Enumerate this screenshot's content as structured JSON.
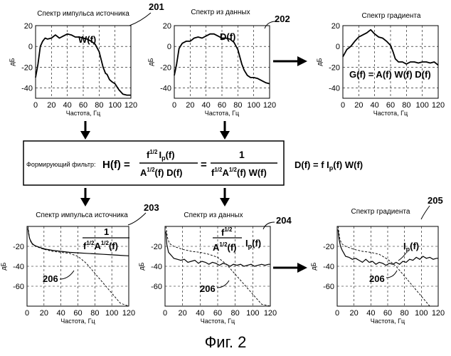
{
  "chart_data": [
    {
      "id": "top-left",
      "type": "line",
      "title": "Спектр импульса источника",
      "xlabel": "Частота, Гц",
      "ylabel": "дБ",
      "xlim": [
        0,
        120
      ],
      "ylim": [
        -50,
        20
      ],
      "xticks": [
        "0",
        "20",
        "40",
        "60",
        "80",
        "100",
        "120"
      ],
      "yticks": [
        "20",
        "0",
        "-20",
        "-40"
      ],
      "grid": true,
      "reference": "201",
      "series": [
        {
          "name": "W(f)",
          "x": [
            0,
            3,
            6,
            9,
            12,
            15,
            20,
            25,
            30,
            35,
            40,
            45,
            50,
            55,
            60,
            65,
            70,
            75,
            80,
            85,
            88,
            90,
            93,
            96,
            100,
            105,
            110,
            115,
            120
          ],
          "y": [
            -30,
            -17,
            0,
            5,
            8,
            7,
            8,
            11,
            8,
            10,
            12,
            11,
            9,
            9,
            8,
            7,
            5,
            2,
            -5,
            -20,
            -26,
            -27,
            -32,
            -34,
            -36,
            -42,
            -46,
            -47,
            -47
          ]
        }
      ]
    },
    {
      "id": "top-middle",
      "type": "line",
      "title": "Спектр из данных",
      "xlabel": "Частота, Гц",
      "ylabel": "дБ",
      "xlim": [
        0,
        120
      ],
      "ylim": [
        -50,
        20
      ],
      "xticks": [
        "0",
        "20",
        "40",
        "60",
        "80",
        "100",
        "120"
      ],
      "yticks": [
        "20",
        "0",
        "-20",
        "-40"
      ],
      "grid": true,
      "reference": "202",
      "series": [
        {
          "name": "D(f)",
          "x": [
            0,
            3,
            6,
            10,
            15,
            20,
            25,
            30,
            35,
            40,
            45,
            50,
            55,
            60,
            65,
            70,
            75,
            80,
            85,
            88,
            92,
            96,
            100,
            105,
            110,
            115,
            120
          ],
          "y": [
            -28,
            -17,
            -2,
            3,
            5,
            5,
            8,
            9,
            8,
            10,
            12,
            12,
            10,
            8,
            8,
            7,
            4,
            -3,
            -17,
            -23,
            -28,
            -30,
            -30,
            -31,
            -33,
            -35,
            -36
          ]
        }
      ]
    },
    {
      "id": "top-right",
      "type": "line",
      "title": "Спектр градиента",
      "xlabel": "Частота, Гц",
      "ylabel": "дБ",
      "xlim": [
        0,
        120
      ],
      "ylim": [
        -50,
        20
      ],
      "xticks": [
        "0",
        "20",
        "40",
        "60",
        "80",
        "100",
        "120"
      ],
      "yticks": [
        "20",
        "0",
        "-20",
        "-40"
      ],
      "grid": true,
      "equation": "G(f) = A(f) W(f) D(f)",
      "series": [
        {
          "name": "G(f)",
          "x": [
            0,
            5,
            10,
            15,
            20,
            25,
            30,
            35,
            40,
            45,
            50,
            55,
            60,
            63,
            66,
            70,
            75,
            80,
            85,
            90,
            95,
            100,
            105,
            110,
            115,
            120
          ],
          "y": [
            -10,
            -3,
            0,
            5,
            9,
            11,
            13,
            16,
            12,
            9,
            8,
            5,
            1,
            -5,
            -12,
            -15,
            -15,
            -17,
            -15,
            -15,
            -16,
            -15,
            -15,
            -16,
            -15,
            -18
          ]
        }
      ]
    },
    {
      "id": "bottom-left",
      "type": "line",
      "title": "Спектр импульса источника",
      "xlabel": "Частота, Гц",
      "ylabel": "дБ",
      "xlim": [
        0,
        120
      ],
      "ylim": [
        -80,
        0
      ],
      "xticks": [
        "0",
        "20",
        "40",
        "60",
        "80",
        "100",
        "120"
      ],
      "yticks": [
        "-20",
        "-40",
        "-60"
      ],
      "grid": true,
      "reference": "203",
      "dashed_reference": "206",
      "series": [
        {
          "name": "1/(f^1/2 A^1/2(f))",
          "x": [
            1,
            2,
            3,
            4,
            6,
            8,
            10,
            15,
            20,
            30,
            40,
            50,
            60,
            70,
            80,
            90,
            100,
            110,
            120
          ],
          "y": [
            -2,
            -8,
            -12,
            -14,
            -17,
            -18.5,
            -19.5,
            -21,
            -22.5,
            -24,
            -25,
            -26,
            -26.5,
            -27,
            -27.5,
            -28,
            -28.5,
            -29,
            -29.5
          ]
        },
        {
          "name": "206",
          "style": "dashed",
          "x": [
            1,
            3,
            5,
            8,
            10,
            20,
            30,
            40,
            50,
            60,
            70,
            80,
            90,
            100,
            110,
            120
          ],
          "y": [
            0,
            -12,
            -17,
            -19,
            -20,
            -23,
            -25,
            -26,
            -27,
            -30,
            -37,
            -47,
            -57,
            -67,
            -77,
            -80
          ]
        }
      ]
    },
    {
      "id": "bottom-middle",
      "type": "line",
      "title": "Спектр из данных",
      "xlabel": "Частота, Гц",
      "ylabel": "дБ",
      "xlim": [
        0,
        120
      ],
      "ylim": [
        -80,
        0
      ],
      "xticks": [
        "0",
        "20",
        "40",
        "60",
        "80",
        "100",
        "120"
      ],
      "yticks": [
        "-20",
        "-40",
        "-60"
      ],
      "grid": true,
      "reference": "204",
      "dashed_reference": "206",
      "series": [
        {
          "name": "f^1/2 Ip(f) / A^1/2(f)",
          "x": [
            1,
            2,
            4,
            6,
            8,
            10,
            14,
            18,
            22,
            26,
            30,
            34,
            38,
            42,
            46,
            50,
            54,
            58,
            62,
            66,
            70,
            74,
            78,
            82,
            86,
            90,
            94,
            98,
            102,
            106,
            110,
            114,
            118,
            120
          ],
          "y": [
            -5,
            -18,
            -26,
            -28,
            -30,
            -32,
            -33,
            -34,
            -33,
            -36,
            -35,
            -34,
            -37,
            -35,
            -36,
            -38,
            -36,
            -37,
            -39,
            -37,
            -38,
            -40,
            -38,
            -39,
            -38,
            -40,
            -39,
            -38,
            -40,
            -39,
            -38,
            -39,
            -38,
            -38
          ]
        },
        {
          "name": "206",
          "style": "dashed",
          "x": [
            1,
            3,
            5,
            8,
            10,
            20,
            30,
            40,
            50,
            60,
            70,
            80,
            90,
            100,
            110,
            120
          ],
          "y": [
            0,
            -12,
            -17,
            -19,
            -20,
            -23,
            -25,
            -26,
            -28,
            -31,
            -38,
            -48,
            -58,
            -68,
            -78,
            -80
          ]
        }
      ]
    },
    {
      "id": "bottom-right",
      "type": "line",
      "title": "Спектр градиента",
      "xlabel": "Частота, Гц",
      "ylabel": "дБ",
      "xlim": [
        0,
        120
      ],
      "ylim": [
        -80,
        0
      ],
      "xticks": [
        "0",
        "20",
        "40",
        "60",
        "80",
        "100",
        "120"
      ],
      "yticks": [
        "-20",
        "-40",
        "-60"
      ],
      "grid": true,
      "reference": "205",
      "dashed_reference": "206",
      "series": [
        {
          "name": "Ip(f)",
          "x": [
            1,
            2,
            4,
            6,
            8,
            10,
            14,
            18,
            22,
            26,
            30,
            34,
            38,
            42,
            46,
            50,
            54,
            58,
            62,
            66,
            70,
            74,
            78,
            82,
            86,
            90,
            94,
            98,
            102,
            106,
            110,
            114,
            118,
            120
          ],
          "y": [
            -3,
            -12,
            -20,
            -24,
            -27,
            -30,
            -31,
            -33,
            -32,
            -34,
            -36,
            -33,
            -36,
            -35,
            -38,
            -36,
            -37,
            -39,
            -37,
            -38,
            -36,
            -38,
            -35,
            -36,
            -33,
            -34,
            -31,
            -33,
            -30,
            -32,
            -31,
            -33,
            -32,
            -32
          ]
        },
        {
          "name": "206",
          "style": "dashed",
          "x": [
            1,
            3,
            5,
            8,
            10,
            20,
            30,
            40,
            50,
            60,
            70,
            80,
            90,
            100,
            110,
            120
          ],
          "y": [
            0,
            -12,
            -17,
            -19,
            -20,
            -23,
            -25,
            -26,
            -28,
            -33,
            -40,
            -50,
            -60,
            -70,
            -80,
            -80
          ]
        }
      ]
    }
  ],
  "filter_box": {
    "label": "Формирующий фильтр:",
    "h": "H(f) =",
    "frac1_num": "f",
    "frac1_num_sup": "1/2",
    "frac1_num_rest": "I",
    "frac1_num_sub": "p",
    "frac1_num_end": "(f)",
    "frac1_den": "A",
    "frac1_den_sup": "1/2",
    "frac1_den_rest": "(f) D(f)",
    "eq": "=",
    "frac2_num": "1",
    "frac2_den_f": "f",
    "frac2_den_sup1": "1/2",
    "frac2_den_a": "A",
    "frac2_den_sup2": "1/2",
    "frac2_den_rest": "(f) W(f)"
  },
  "side_equation": {
    "lhs": "D(f) = f I",
    "sub": "p",
    "rhs": "(f) W(f)"
  },
  "annotations": {
    "w": "W(f)",
    "d": "D(f)",
    "g": "G(f) = A(f) W(f) D(f)",
    "bl_num": "1",
    "bl_den_f": "f",
    "bl_den_sup1": "1/2",
    "bl_den_a": "A",
    "bl_den_sup2": "1/2",
    "bl_den_rest": "(f)",
    "bm_num_f": "f",
    "bm_num_sup": "1/2",
    "bm_den_a": "A",
    "bm_den_sup": "1/2",
    "bm_den_rest": "(f)",
    "bm_ip": "I",
    "bm_ip_sub": "p",
    "bm_ip_rest": "(f)",
    "br_ip": "I",
    "br_ip_sub": "p",
    "br_ip_rest": "(f)"
  },
  "caption": "Фиг. 2"
}
